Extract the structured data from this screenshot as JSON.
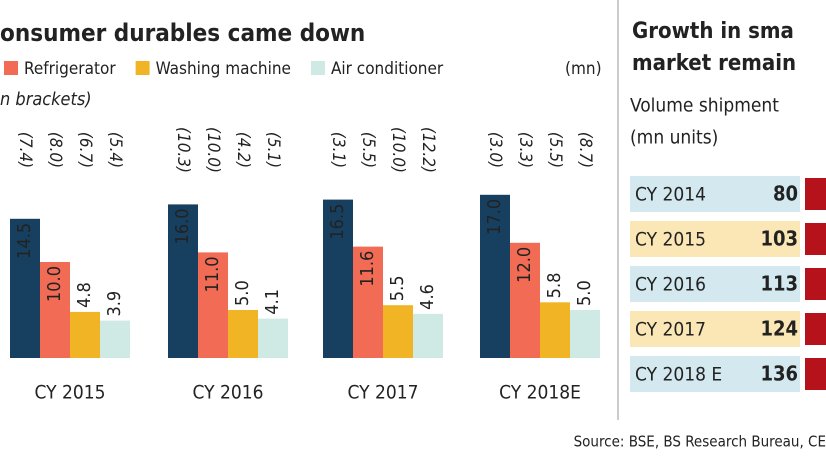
{
  "chart_data": {
    "type": "bar",
    "title": "onsumer durables came down",
    "subtitle": "n brackets)",
    "unit": "(mn)",
    "categories": [
      "CY 2015",
      "CY 2016",
      "CY 2017",
      "CY 2018E"
    ],
    "series": [
      {
        "color": "#173f5f",
        "values": [
          14.5,
          16.0,
          16.5,
          17.0
        ],
        "value_labels": [
          "14.5",
          "16.0",
          "16.5",
          "17.0"
        ],
        "growth": [
          7.4,
          10.3,
          3.1,
          3.0
        ],
        "growth_labels": [
          "(7.4)",
          "(10.3)",
          "(3.1)",
          "(3.0)"
        ]
      },
      {
        "name": "Refrigerator",
        "color": "#f26b55",
        "values": [
          10.0,
          11.0,
          11.6,
          12.0
        ],
        "value_labels": [
          "10.0",
          "11.0",
          "11.6",
          "12.0"
        ],
        "growth": [
          8.0,
          10.0,
          5.5,
          3.3
        ],
        "growth_labels": [
          "(8.0)",
          "(10.0)",
          "(5.5)",
          "(3.3)"
        ]
      },
      {
        "name": "Washing machine",
        "color": "#f1b424",
        "values": [
          4.8,
          5.0,
          5.5,
          5.8
        ],
        "value_labels": [
          "4.8",
          "5.0",
          "5.5",
          "5.8"
        ],
        "growth": [
          6.7,
          4.2,
          10.0,
          5.5
        ],
        "growth_labels": [
          "(6.7)",
          "(4.2)",
          "(10.0)",
          "(5.5)"
        ]
      },
      {
        "name": "Air conditioner",
        "color": "#cfe9e5",
        "values": [
          3.9,
          4.1,
          4.6,
          5.0
        ],
        "value_labels": [
          "3.9",
          "4.1",
          "4.6",
          "5.0"
        ],
        "growth": [
          5.4,
          5.1,
          12.2,
          8.7
        ],
        "growth_labels": [
          "(5.4)",
          "(5.1)",
          "(12.2)",
          "(8.7)"
        ]
      }
    ]
  },
  "side_table": {
    "title_lines": [
      "Growth in sma",
      "market remain"
    ],
    "subtitle_lines": [
      "Volume shipment",
      "(mn units)"
    ],
    "bar_color": "#b5121b",
    "rows": [
      {
        "label": "CY 2014",
        "value": 80,
        "color": "#d3e8ef"
      },
      {
        "label": "CY 2015",
        "value": 103,
        "color": "#fbe7b5"
      },
      {
        "label": "CY 2016",
        "value": 113,
        "color": "#d3e8ef"
      },
      {
        "label": "CY 2017",
        "value": 124,
        "color": "#fbe7b5"
      },
      {
        "label": "CY 2018 E",
        "value": 136,
        "color": "#d3e8ef"
      }
    ]
  },
  "source": "Source: BSE, BS Research Bureau, CE"
}
